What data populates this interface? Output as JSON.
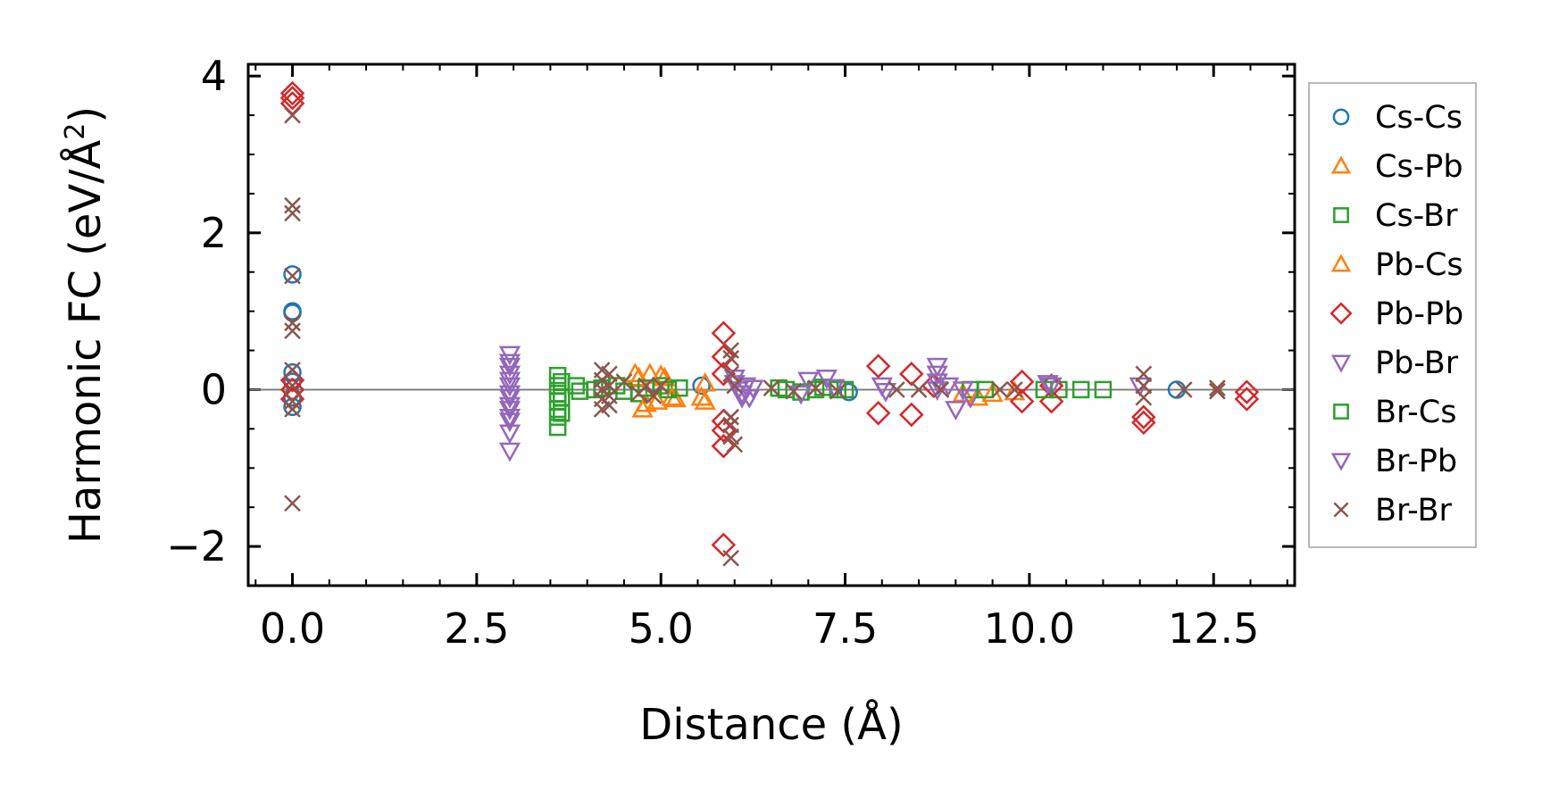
{
  "chart_data": {
    "type": "scatter",
    "xlabel": "Distance (Å)",
    "ylabel_main": "Harmonic FC (eV/Å",
    "ylabel_sup": "2",
    "ylabel_close": ")",
    "xlim": [
      -0.6,
      13.6
    ],
    "ylim": [
      -2.5,
      4.15
    ],
    "x_ticks": [
      0.0,
      2.5,
      5.0,
      7.5,
      10.0,
      12.5
    ],
    "x_tick_labels": [
      "0.0",
      "2.5",
      "5.0",
      "7.5",
      "10.0",
      "12.5"
    ],
    "y_ticks": [
      -2,
      0,
      2,
      4
    ],
    "y_tick_labels": [
      "−2",
      "0",
      "2",
      "4"
    ],
    "zero_line": 0,
    "legend_position": "outside-right",
    "series": [
      {
        "name": "Cs-Cs",
        "marker": "circle",
        "color": "#1f77b4",
        "x": [
          0,
          0,
          0,
          0,
          0,
          0,
          0,
          5.55,
          7.55,
          12.0
        ],
        "y": [
          1.47,
          1.0,
          0.98,
          0.22,
          0.1,
          -0.1,
          -0.22,
          0.05,
          -0.03,
          0.0
        ]
      },
      {
        "name": "Cs-Pb",
        "marker": "triangle-up",
        "color": "#ff7f0e",
        "x": [
          4.65,
          4.75,
          4.85,
          4.95,
          5.05,
          5.2,
          5.55,
          5.6,
          9.1,
          9.5,
          9.8
        ],
        "y": [
          0.2,
          -0.25,
          0.2,
          -0.15,
          0.15,
          -0.12,
          -0.1,
          0.08,
          -0.05,
          -0.05,
          -0.03
        ]
      },
      {
        "name": "Cs-Br",
        "marker": "square",
        "color": "#2ca02c",
        "x": [
          3.6,
          3.6,
          3.6,
          3.6,
          3.6,
          3.6,
          3.6,
          3.85,
          4.1,
          4.4,
          4.7,
          5.0,
          5.25,
          6.6,
          6.9,
          7.2,
          7.5,
          9.2,
          10.4,
          10.7,
          11.0
        ],
        "y": [
          0.18,
          0.05,
          -0.05,
          -0.15,
          -0.25,
          -0.35,
          -0.48,
          0.05,
          0.0,
          0.05,
          -0.05,
          0.05,
          0.02,
          0.02,
          -0.03,
          0.03,
          0.0,
          0.0,
          0.0,
          0.0,
          0.0
        ]
      },
      {
        "name": "Pb-Cs",
        "marker": "triangle-up",
        "color": "#ff7f0e",
        "x": [
          4.7,
          4.8,
          5.0,
          5.15,
          5.6,
          9.3
        ],
        "y": [
          0.15,
          -0.18,
          0.18,
          -0.1,
          -0.15,
          -0.1
        ]
      },
      {
        "name": "Pb-Pb",
        "marker": "diamond",
        "color": "#d62728",
        "x": [
          0,
          0,
          0,
          0,
          0,
          0,
          5.85,
          5.85,
          5.85,
          5.85,
          5.85,
          5.85,
          5.85,
          7.95,
          7.95,
          8.4,
          8.4,
          8.7,
          9.9,
          9.9,
          10.3,
          10.3,
          11.55,
          11.55,
          12.95,
          12.95
        ],
        "y": [
          3.78,
          3.72,
          3.65,
          0.12,
          0.0,
          -0.12,
          0.72,
          0.42,
          0.2,
          -0.4,
          -0.52,
          -0.72,
          -1.98,
          0.3,
          -0.3,
          0.2,
          -0.32,
          0.05,
          0.1,
          -0.15,
          0.05,
          -0.15,
          -0.35,
          -0.42,
          -0.03,
          -0.12
        ]
      },
      {
        "name": "Pb-Br",
        "marker": "triangle-down",
        "color": "#9467bd",
        "x": [
          2.95,
          2.95,
          2.95,
          2.95,
          2.95,
          2.95,
          2.95,
          2.95,
          2.95,
          6.0,
          6.05,
          6.1,
          6.15,
          6.2,
          7.0,
          7.25,
          8.0,
          8.9,
          9.0,
          9.2,
          10.3,
          11.5
        ],
        "y": [
          0.45,
          0.35,
          0.2,
          0.05,
          -0.1,
          -0.25,
          -0.4,
          -0.55,
          -0.78,
          0.15,
          0.0,
          -0.1,
          0.05,
          -0.1,
          0.12,
          0.15,
          0.05,
          0.05,
          -0.25,
          -0.1,
          0.05,
          0.05
        ]
      },
      {
        "name": "Br-Cs",
        "marker": "square",
        "color": "#2ca02c",
        "x": [
          3.65,
          3.65,
          3.65,
          3.9,
          4.2,
          4.5,
          4.8,
          5.1,
          6.7,
          7.1,
          7.4,
          9.4,
          10.2
        ],
        "y": [
          0.1,
          -0.1,
          -0.3,
          -0.02,
          0.02,
          -0.02,
          0.02,
          0.0,
          0.0,
          0.0,
          0.0,
          0.0,
          0.0
        ]
      },
      {
        "name": "Br-Pb",
        "marker": "triangle-down",
        "color": "#9467bd",
        "x": [
          2.95,
          2.95,
          2.95,
          2.95,
          2.95,
          6.0,
          6.1,
          6.25,
          6.9,
          7.35,
          8.05,
          8.75,
          8.75,
          8.75,
          8.75,
          9.1,
          10.25
        ],
        "y": [
          0.3,
          0.12,
          -0.05,
          -0.2,
          -0.35,
          0.08,
          -0.05,
          0.02,
          -0.05,
          0.03,
          -0.02,
          0.3,
          0.2,
          0.1,
          0.0,
          0.0,
          0.08
        ]
      },
      {
        "name": "Br-Br",
        "marker": "x",
        "color": "#8c564b",
        "x": [
          0,
          0,
          0,
          0,
          0,
          0,
          0,
          0,
          0,
          0,
          0,
          4.2,
          4.2,
          4.2,
          4.2,
          4.2,
          4.3,
          4.3,
          4.3,
          4.3,
          4.5,
          4.7,
          4.8,
          4.9,
          5.0,
          5.95,
          5.95,
          5.95,
          5.95,
          5.95,
          5.95,
          5.95,
          6.0,
          6.0,
          6.5,
          6.8,
          7.1,
          7.4,
          8.2,
          8.5,
          8.8,
          9.6,
          9.8,
          11.55,
          11.55,
          11.55,
          12.1,
          12.55,
          12.55
        ],
        "y": [
          3.5,
          2.35,
          2.25,
          1.45,
          0.85,
          0.75,
          0.25,
          0.05,
          -0.15,
          -0.25,
          -1.45,
          0.25,
          0.12,
          0.0,
          -0.12,
          -0.25,
          0.2,
          0.05,
          -0.08,
          -0.2,
          0.1,
          -0.05,
          0.05,
          -0.08,
          0.05,
          0.5,
          0.4,
          0.2,
          -0.35,
          -0.45,
          -0.6,
          -2.15,
          -0.7,
          0.05,
          0.02,
          -0.02,
          0.02,
          -0.02,
          0.0,
          0.0,
          0.0,
          0.0,
          0.0,
          0.2,
          0.05,
          -0.1,
          0.0,
          0.02,
          -0.02
        ]
      }
    ]
  }
}
